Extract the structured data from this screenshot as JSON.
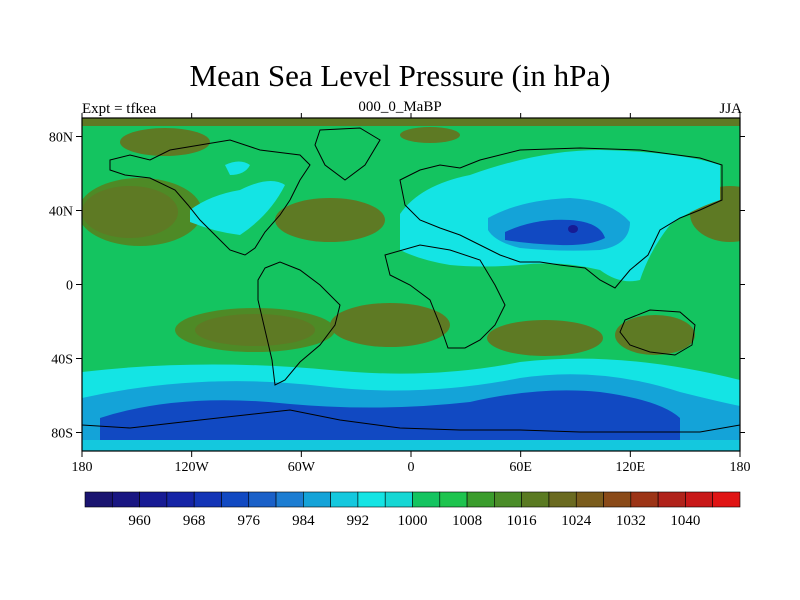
{
  "title": "Mean Sea Level Pressure (in hPa)",
  "left_subtitle": "Expt = tfkea",
  "center_subtitle": "000_0_MaBP",
  "right_subtitle": "JJA",
  "map": {
    "lon_range": [
      -180,
      180
    ],
    "lat_range": [
      -90,
      90
    ],
    "lon_ticks": [
      {
        "value": -180,
        "label": "180"
      },
      {
        "value": -120,
        "label": "120W"
      },
      {
        "value": -60,
        "label": "60W"
      },
      {
        "value": 0,
        "label": "0"
      },
      {
        "value": 60,
        "label": "60E"
      },
      {
        "value": 120,
        "label": "120E"
      },
      {
        "value": 180,
        "label": "180"
      }
    ],
    "lat_ticks": [
      {
        "value": 80,
        "label": "80N"
      },
      {
        "value": 40,
        "label": "40N"
      },
      {
        "value": 0,
        "label": "0"
      },
      {
        "value": -40,
        "label": "40S"
      },
      {
        "value": -80,
        "label": "80S"
      }
    ]
  },
  "colorbar": {
    "levels": [
      956,
      960,
      964,
      968,
      972,
      976,
      980,
      984,
      988,
      992,
      996,
      1000,
      1004,
      1008,
      1012,
      1016,
      1020,
      1024,
      1028,
      1032,
      1036,
      1040,
      1044
    ],
    "labels": [
      "960",
      "968",
      "976",
      "984",
      "992",
      "1000",
      "1008",
      "1016",
      "1024",
      "1032",
      "1040"
    ],
    "colors": [
      "#1a1470",
      "#191682",
      "#171b94",
      "#1524a6",
      "#1334b6",
      "#1149c2",
      "#1a60c8",
      "#1c7dd2",
      "#14a3d8",
      "#14c8de",
      "#14e4e4",
      "#16d7d4",
      "#14c460",
      "#1ec44e",
      "#3a9c2c",
      "#4a8c28",
      "#5a7a22",
      "#6a6a20",
      "#7a5c1c",
      "#8a4a18",
      "#9c3416",
      "#b0221a",
      "#c81818",
      "#e01414"
    ]
  },
  "palette": {
    "ocean_mean": "#14c460",
    "high": "#5e7a24",
    "low_cyan": "#14e4e4",
    "low_mid": "#14a3d8",
    "low_deep": "#1149c2"
  }
}
